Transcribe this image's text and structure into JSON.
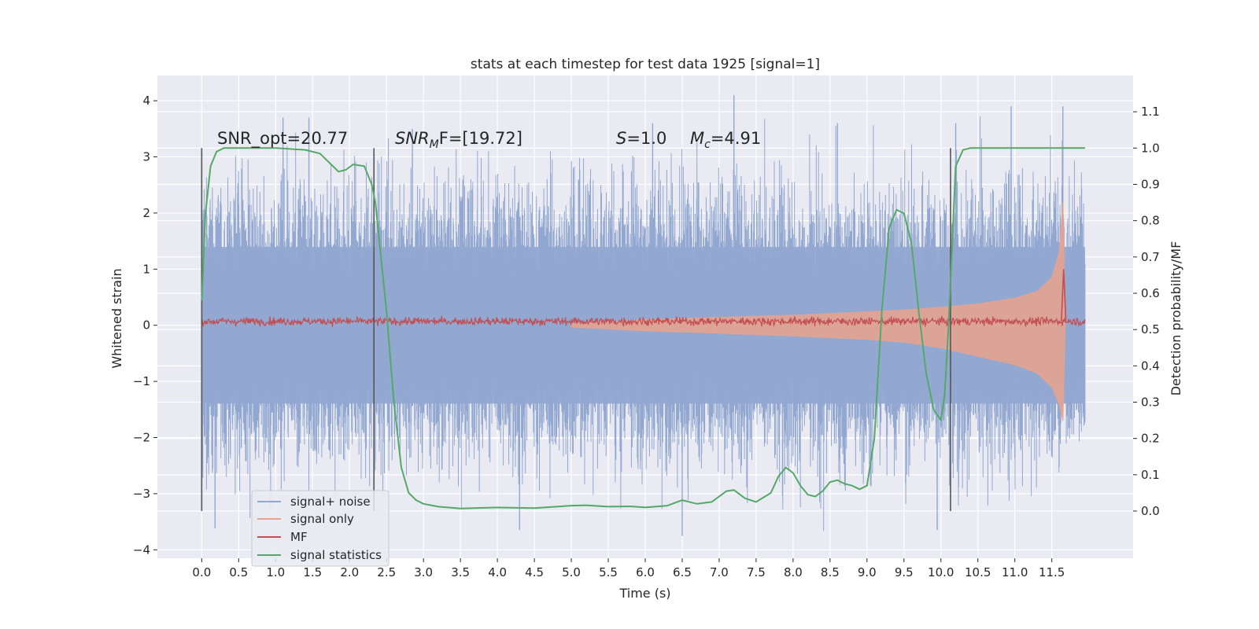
{
  "chart_data": {
    "type": "line",
    "title": "stats at each timestep for test data 1925 [signal=1]",
    "xlabel": "Time (s)",
    "ylabel": "Whitened strain",
    "y2label": "Detection probability/MF",
    "xlim": [
      -0.6,
      12.6
    ],
    "ylim": [
      -4.15,
      4.45
    ],
    "y2lim": [
      -0.13,
      1.2
    ],
    "x_ticks": [
      "0.0",
      "0.5",
      "1.0",
      "1.5",
      "2.0",
      "2.5",
      "3.0",
      "3.5",
      "4.0",
      "4.5",
      "5.0",
      "5.5",
      "6.0",
      "6.5",
      "7.0",
      "7.5",
      "8.0",
      "8.5",
      "9.0",
      "9.5",
      "10.0",
      "10.5",
      "11.0",
      "11.5"
    ],
    "y_ticks": [
      "4",
      "3",
      "2",
      "1",
      "0",
      "−1",
      "−2",
      "−3",
      "−4"
    ],
    "y2_ticks": [
      "1.1",
      "1.0",
      "0.9",
      "0.8",
      "0.7",
      "0.6",
      "0.5",
      "0.4",
      "0.3",
      "0.2",
      "0.1",
      "0.0"
    ],
    "grid": true,
    "legend_position": "lower-left",
    "annotations": {
      "snr_opt": "SNR_opt=20.77",
      "snr_mf_label": "SNR",
      "snr_mf_sub": "M",
      "snr_mf_suffix": "F=[19.72]",
      "s_label": "S",
      "s_value": "=1.0",
      "mc_label": "M",
      "mc_sub": "c",
      "mc_value": "=4.91"
    },
    "vertical_markers_x": [
      0.0,
      2.33,
      10.13
    ],
    "series": [
      {
        "name": "signal+ noise",
        "axis": "left",
        "color": "#92a8d1",
        "x_range": [
          0.0,
          11.95
        ],
        "envelope_abs": 1.5,
        "peaks": [
          [
            1.1,
            3.7
          ],
          [
            1.45,
            3.7
          ],
          [
            2.85,
            3.5
          ],
          [
            6.1,
            3.6
          ],
          [
            7.2,
            4.1
          ],
          [
            8.6,
            3.6
          ],
          [
            10.2,
            3.6
          ],
          [
            10.95,
            3.9
          ],
          [
            11.65,
            3.9
          ],
          [
            0.18,
            -3.62
          ],
          [
            4.3,
            -3.65
          ],
          [
            6.5,
            -3.75
          ],
          [
            9.95,
            -3.65
          ]
        ]
      },
      {
        "name": "signal only",
        "axis": "left",
        "color": "#e9a28d",
        "x": [
          5.0,
          6.0,
          7.0,
          8.0,
          9.0,
          9.5,
          10.0,
          10.5,
          11.0,
          11.3,
          11.5,
          11.6,
          11.65,
          11.68
        ],
        "upper": [
          0.03,
          0.1,
          0.14,
          0.18,
          0.24,
          0.27,
          0.32,
          0.38,
          0.48,
          0.6,
          0.85,
          1.3,
          2.2,
          0.0
        ],
        "lower": [
          -0.03,
          -0.1,
          -0.14,
          -0.19,
          -0.25,
          -0.3,
          -0.4,
          -0.55,
          -0.7,
          -0.85,
          -1.1,
          -1.4,
          -1.7,
          0.0
        ]
      },
      {
        "name": "MF",
        "axis": "left",
        "color": "#c44e52",
        "x_range": [
          0.0,
          11.95
        ],
        "level": 0.07,
        "peak": [
          11.66,
          1.0
        ]
      },
      {
        "name": "signal statistics",
        "axis": "right",
        "color": "#55a868",
        "x": [
          0.0,
          0.05,
          0.12,
          0.2,
          0.3,
          0.5,
          1.0,
          1.4,
          1.6,
          1.75,
          1.85,
          1.95,
          2.05,
          2.2,
          2.3,
          2.35,
          2.4,
          2.5,
          2.6,
          2.7,
          2.8,
          2.9,
          3.0,
          3.2,
          3.5,
          4.0,
          4.5,
          5.0,
          5.2,
          5.5,
          5.8,
          6.0,
          6.3,
          6.5,
          6.7,
          6.9,
          7.1,
          7.2,
          7.35,
          7.5,
          7.7,
          7.8,
          7.9,
          8.0,
          8.1,
          8.2,
          8.3,
          8.4,
          8.5,
          8.6,
          8.7,
          8.8,
          8.9,
          9.0,
          9.1,
          9.2,
          9.3,
          9.4,
          9.5,
          9.6,
          9.7,
          9.8,
          9.9,
          10.0,
          10.05,
          10.1,
          10.15,
          10.2,
          10.3,
          10.4,
          10.6,
          11.0,
          11.5,
          11.95
        ],
        "y": [
          0.58,
          0.82,
          0.95,
          0.99,
          1.0,
          1.0,
          1.0,
          0.995,
          0.985,
          0.955,
          0.935,
          0.94,
          0.955,
          0.95,
          0.9,
          0.85,
          0.75,
          0.55,
          0.3,
          0.12,
          0.05,
          0.03,
          0.02,
          0.012,
          0.007,
          0.01,
          0.008,
          0.015,
          0.016,
          0.012,
          0.013,
          0.01,
          0.015,
          0.03,
          0.02,
          0.025,
          0.055,
          0.058,
          0.035,
          0.025,
          0.05,
          0.095,
          0.12,
          0.105,
          0.07,
          0.045,
          0.04,
          0.055,
          0.08,
          0.085,
          0.075,
          0.07,
          0.06,
          0.07,
          0.2,
          0.55,
          0.78,
          0.83,
          0.82,
          0.74,
          0.55,
          0.38,
          0.28,
          0.25,
          0.32,
          0.5,
          0.72,
          0.95,
          0.995,
          1.0,
          1.0,
          1.0,
          1.0,
          1.0
        ]
      }
    ]
  }
}
